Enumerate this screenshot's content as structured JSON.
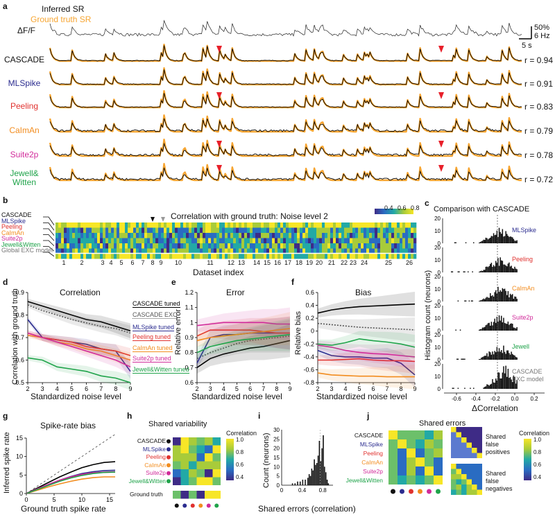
{
  "panels": {
    "a": "a",
    "b": "b",
    "c": "c",
    "d": "d",
    "e": "e",
    "f": "f",
    "g": "g",
    "h": "h",
    "i": "i",
    "j": "j"
  },
  "panel_a": {
    "legend_inferred": "Inferred SR",
    "legend_ground_truth": "Ground truth SR",
    "dff_label": "ΔF/F",
    "scale_pct": "50%",
    "scale_hz": "6 Hz",
    "scale_time": "5 s",
    "colors": {
      "inferred": "#000000",
      "ground_truth": "#F7A531",
      "marker": "#E8202A"
    },
    "rows": [
      {
        "name": "CASCADE",
        "color": "#111111",
        "r": "r = 0.94"
      },
      {
        "name": "MLSpike",
        "color": "#2B2C8F",
        "r": "r = 0.91"
      },
      {
        "name": "Peeling",
        "color": "#E0312E",
        "r": "r = 0.83"
      },
      {
        "name": "CaImAn",
        "color": "#F28C1E",
        "r": "r = 0.79"
      },
      {
        "name": "Suite2p",
        "color": "#D12A9A",
        "r": "r = 0.78"
      },
      {
        "name": "Jewell&",
        "name2": "Witten",
        "color": "#1FA34A",
        "r": "r = 0.72"
      }
    ]
  },
  "panel_b": {
    "title": "Correlation with ground truth: Noise level 2",
    "xlabel": "Dataset index",
    "colorbar_ticks": [
      "0.4",
      "0.6",
      "0.8"
    ],
    "row_labels": [
      {
        "name": "CASCADE",
        "color": "#111111"
      },
      {
        "name": "MLSpike",
        "color": "#2B2C8F"
      },
      {
        "name": "Peeling",
        "color": "#E0312E"
      },
      {
        "name": "CaImAn",
        "color": "#F28C1E"
      },
      {
        "name": "Suite2p",
        "color": "#D12A9A"
      },
      {
        "name": "Jewell&Witten",
        "color": "#1FA34A"
      },
      {
        "name": "Global EXC model",
        "color": "#777777"
      }
    ],
    "dataset_ticks": [
      "1",
      "2",
      "3",
      "4",
      "5",
      "6",
      "7",
      "8",
      "9",
      "10",
      "11",
      "12",
      "13",
      "14",
      "15",
      "16",
      "17",
      "18",
      "19",
      "20",
      "21",
      "22",
      "23",
      "24",
      "25",
      "26"
    ]
  },
  "panel_c": {
    "title": "Comparison with CASCADE",
    "ylabel": "Histogram count (neurons)",
    "xlabel": "ΔCorrelation",
    "x_ticks": [
      "-0.6",
      "-0.4",
      "-0.2",
      "0.0",
      "0.2"
    ],
    "y_ticks": [
      "0",
      "10",
      "20"
    ],
    "methods": [
      {
        "name": "MLSpike",
        "color": "#2B2C8F"
      },
      {
        "name": "Peeling",
        "color": "#E0312E"
      },
      {
        "name": "CaImAn",
        "color": "#F28C1E"
      },
      {
        "name": "Suite2p",
        "color": "#D12A9A"
      },
      {
        "name": "Jewell",
        "color": "#1FA34A"
      },
      {
        "name": "CASCADE",
        "name2": "EXC model",
        "color": "#777777"
      }
    ]
  },
  "panel_d": {
    "title": "Correlation",
    "ylabel": "Correlation with ground truth",
    "xlabel": "Standardized noise level",
    "legend": [
      {
        "name": "CASCADE tuned",
        "color": "#000000"
      },
      {
        "name": "CASCADE EXC",
        "color": "#555555"
      },
      {
        "name": "MLSpike tuned",
        "color": "#2B2C8F"
      },
      {
        "name": "Peeling tuned",
        "color": "#E0312E"
      },
      {
        "name": "CaImAn tuned",
        "color": "#F28C1E"
      },
      {
        "name": "Suite2p tuned",
        "color": "#D12A9A"
      },
      {
        "name": "Jewell&Witten tuned",
        "color": "#1FA34A"
      }
    ]
  },
  "panel_e": {
    "title": "Error",
    "ylabel": "Relative error",
    "xlabel": "Standardized noise level"
  },
  "panel_f": {
    "title": "Bias",
    "ylabel": "Relative bias",
    "xlabel": "Standardized noise level"
  },
  "panel_g": {
    "title": "Spike-rate bias",
    "ylabel": "Inferred spike rate",
    "xlabel": "Ground truth spike rate"
  },
  "panel_h": {
    "title": "Shared variability",
    "colorbar_title": "Correlation",
    "colorbar_ticks": [
      "1.0",
      "0.8",
      "0.6",
      "0.4"
    ],
    "rows": [
      {
        "name": "CASCADE",
        "color": "#111111"
      },
      {
        "name": "MLSpike",
        "color": "#2B2C8F"
      },
      {
        "name": "Peeling",
        "color": "#E0312E"
      },
      {
        "name": "CaImAn",
        "color": "#F28C1E"
      },
      {
        "name": "Suite2p",
        "color": "#D12A9A"
      },
      {
        "name": "Jewell&Witten",
        "color": "#1FA34A"
      }
    ],
    "ground_truth_label": "Ground truth"
  },
  "panel_i": {
    "ylabel": "Count (neurons)",
    "xlabel": "Shared errors (correlation)",
    "x_ticks": [
      "0",
      "0.4",
      "0.8"
    ],
    "y_ticks": [
      "0",
      "5",
      "10",
      "15",
      "20",
      "25",
      "30"
    ]
  },
  "panel_j": {
    "title": "Shared errors",
    "colorbar_title": "Correlation",
    "colorbar_ticks": [
      "1.0",
      "0.8",
      "0.6",
      "0.4"
    ],
    "label_fp": [
      "Shared",
      "false",
      "positives"
    ],
    "label_fn": [
      "Shared",
      "false",
      "negatives"
    ]
  },
  "chart_data": [
    {
      "type": "line",
      "panel": "d",
      "title": "Correlation",
      "xlabel": "Standardized noise level",
      "ylabel": "Correlation with ground truth",
      "x": [
        2,
        3,
        4,
        5,
        6,
        7,
        8,
        9
      ],
      "xlim": [
        2,
        9
      ],
      "ylim": [
        0.5,
        0.9
      ],
      "x_ticks": [
        2,
        3,
        4,
        5,
        6,
        7,
        8,
        9
      ],
      "y_ticks": [
        0.5,
        0.6,
        0.7,
        0.8,
        0.9
      ],
      "series": [
        {
          "name": "CASCADE tuned",
          "color": "#000000",
          "style": "solid",
          "values": [
            0.86,
            0.84,
            0.82,
            0.8,
            0.78,
            0.77,
            0.75,
            0.73
          ]
        },
        {
          "name": "CASCADE EXC",
          "color": "#555555",
          "style": "dotted",
          "values": [
            0.845,
            0.82,
            0.8,
            0.78,
            0.765,
            0.75,
            0.74,
            0.72
          ]
        },
        {
          "name": "MLSpike tuned",
          "color": "#2B2C8F",
          "style": "solid",
          "values": [
            0.78,
            0.7,
            0.69,
            0.68,
            0.67,
            0.65,
            0.64,
            0.55
          ]
        },
        {
          "name": "Peeling tuned",
          "color": "#E0312E",
          "style": "solid",
          "values": [
            0.72,
            0.7,
            0.69,
            0.68,
            0.66,
            0.65,
            0.64,
            0.62
          ]
        },
        {
          "name": "CaImAn tuned",
          "color": "#F28C1E",
          "style": "solid",
          "values": [
            0.71,
            0.7,
            0.68,
            0.67,
            0.65,
            0.64,
            0.62,
            0.6
          ]
        },
        {
          "name": "Suite2p tuned",
          "color": "#D12A9A",
          "style": "solid",
          "values": [
            0.72,
            0.7,
            0.68,
            0.66,
            0.64,
            0.62,
            0.6,
            0.57
          ]
        },
        {
          "name": "Jewell&Witten tuned",
          "color": "#1FA34A",
          "style": "solid",
          "values": [
            0.61,
            0.6,
            0.57,
            0.56,
            0.55,
            0.53,
            0.52,
            0.5
          ]
        }
      ]
    },
    {
      "type": "line",
      "panel": "e",
      "title": "Error",
      "xlabel": "Standardized noise level",
      "ylabel": "Relative error",
      "x": [
        2,
        3,
        4,
        5,
        6,
        7,
        8,
        9
      ],
      "xlim": [
        2,
        9
      ],
      "ylim": [
        0.6,
        1.2
      ],
      "x_ticks": [
        2,
        3,
        4,
        5,
        6,
        7,
        8,
        9
      ],
      "y_ticks": [
        0.6,
        0.7,
        0.8,
        0.9,
        1.0,
        1.1,
        1.2
      ],
      "series": [
        {
          "color": "#000000",
          "values": [
            0.7,
            0.76,
            0.79,
            0.81,
            0.83,
            0.84,
            0.86,
            0.88
          ]
        },
        {
          "color": "#555555",
          "style": "dotted",
          "values": [
            0.76,
            0.8,
            0.83,
            0.86,
            0.88,
            0.89,
            0.9,
            0.91
          ]
        },
        {
          "color": "#2B2C8F",
          "values": [
            0.73,
            0.9,
            0.92,
            0.92,
            0.93,
            0.93,
            0.93,
            0.93
          ]
        },
        {
          "color": "#E0312E",
          "values": [
            0.91,
            0.95,
            0.95,
            0.95,
            0.95,
            0.94,
            0.93,
            0.93
          ]
        },
        {
          "color": "#F28C1E",
          "values": [
            0.88,
            0.9,
            0.91,
            0.92,
            0.93,
            0.94,
            0.95,
            0.96
          ]
        },
        {
          "color": "#D12A9A",
          "values": [
            0.98,
            0.99,
            1.0,
            1.0,
            1.0,
            1.0,
            0.99,
            0.99
          ]
        },
        {
          "color": "#1FA34A",
          "values": [
            0.8,
            0.84,
            0.86,
            0.88,
            0.89,
            0.9,
            0.91,
            0.92
          ]
        }
      ]
    },
    {
      "type": "line",
      "panel": "f",
      "title": "Bias",
      "xlabel": "Standardized noise level",
      "ylabel": "Relative bias",
      "x": [
        2,
        3,
        4,
        5,
        6,
        7,
        8,
        9
      ],
      "xlim": [
        2,
        9
      ],
      "ylim": [
        -0.8,
        0.6
      ],
      "x_ticks": [
        2,
        3,
        4,
        5,
        6,
        7,
        8,
        9
      ],
      "y_ticks": [
        -0.8,
        -0.6,
        -0.4,
        -0.2,
        0,
        0.2,
        0.4,
        0.6
      ],
      "series": [
        {
          "color": "#000000",
          "values": [
            0.28,
            0.33,
            0.36,
            0.38,
            0.39,
            0.4,
            0.41,
            0.42
          ]
        },
        {
          "color": "#555555",
          "style": "dotted",
          "values": [
            0.12,
            0.1,
            0.08,
            0.06,
            0.05,
            0.04,
            0.03,
            0.02
          ]
        },
        {
          "color": "#2B2C8F",
          "values": [
            -0.3,
            -0.38,
            -0.4,
            -0.4,
            -0.42,
            -0.42,
            -0.5,
            -0.68
          ]
        },
        {
          "color": "#E0312E",
          "values": [
            -0.45,
            -0.45,
            -0.44,
            -0.43,
            -0.45,
            -0.46,
            -0.46,
            -0.47
          ]
        },
        {
          "color": "#F28C1E",
          "values": [
            -0.65,
            -0.68,
            -0.69,
            -0.7,
            -0.7,
            -0.71,
            -0.71,
            -0.71
          ]
        },
        {
          "color": "#D12A9A",
          "values": [
            -0.22,
            -0.25,
            -0.3,
            -0.33,
            -0.35,
            -0.36,
            -0.38,
            -0.4
          ]
        },
        {
          "color": "#1FA34A",
          "values": [
            -0.2,
            -0.22,
            -0.18,
            -0.12,
            -0.15,
            -0.17,
            -0.2,
            -0.25
          ]
        }
      ]
    },
    {
      "type": "line",
      "panel": "g",
      "title": "Spike-rate bias",
      "xlabel": "Ground truth spike rate",
      "ylabel": "Inferred spike rate",
      "x": [
        0,
        2,
        4,
        6,
        8,
        10,
        12,
        14,
        16
      ],
      "xlim": [
        0,
        16
      ],
      "ylim": [
        0,
        15
      ],
      "x_ticks": [
        0,
        5,
        10,
        15
      ],
      "y_ticks": [
        0,
        5,
        10,
        15
      ],
      "series": [
        {
          "color": "#000000",
          "values": [
            0,
            1.5,
            3.0,
            4.5,
            5.8,
            7.0,
            7.8,
            8.4,
            8.6
          ]
        },
        {
          "color": "#2B2C8F",
          "values": [
            0,
            1.2,
            2.5,
            3.6,
            4.6,
            5.4,
            5.9,
            6.2,
            6.3
          ]
        },
        {
          "color": "#E0312E",
          "values": [
            0,
            1.2,
            2.3,
            3.4,
            4.3,
            5.1,
            5.6,
            5.7,
            5.8
          ]
        },
        {
          "color": "#F28C1E",
          "values": [
            0,
            0.9,
            1.8,
            2.6,
            3.3,
            3.9,
            4.3,
            4.5,
            4.5
          ]
        },
        {
          "color": "#D12A9A",
          "values": [
            0,
            1.3,
            2.5,
            3.6,
            4.5,
            5.2,
            5.6,
            5.8,
            5.9
          ]
        },
        {
          "color": "#1FA34A",
          "values": [
            0,
            1.1,
            2.2,
            3.3,
            4.2,
            4.9,
            5.4,
            5.7,
            5.8
          ]
        },
        {
          "color": "#555555",
          "style": "dashed",
          "values": [
            0,
            2,
            4,
            6,
            8,
            10,
            12,
            14,
            16
          ]
        }
      ]
    },
    {
      "type": "bar",
      "panel": "i",
      "xlabel": "Shared errors (correlation)",
      "ylabel": "Count (neurons)",
      "xlim": [
        0,
        1
      ],
      "ylim": [
        0,
        30
      ],
      "x_ticks": [
        0,
        0.4,
        0.8
      ],
      "y_ticks": [
        0,
        5,
        10,
        15,
        20,
        25,
        30
      ],
      "bin_width": 0.025,
      "bin_starts": [
        0.2,
        0.25,
        0.3,
        0.35,
        0.4,
        0.45,
        0.5,
        0.525,
        0.55,
        0.575,
        0.6,
        0.625,
        0.65,
        0.675,
        0.7,
        0.725,
        0.75,
        0.775,
        0.8,
        0.825,
        0.85,
        0.875,
        0.9
      ],
      "values": [
        1,
        1,
        2,
        2,
        3,
        3,
        4,
        6,
        5,
        9,
        8,
        14,
        11,
        12,
        16,
        24,
        13,
        20,
        27,
        10,
        7,
        3,
        1
      ],
      "mean_line": 0.75
    }
  ]
}
